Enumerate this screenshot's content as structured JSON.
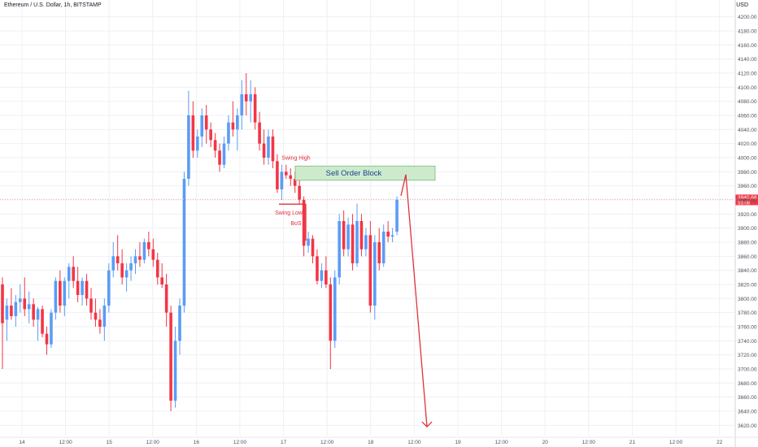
{
  "header": {
    "title": "Ethereum / U.S. Dollar, 1h, BITSTAMP",
    "currency": "USD"
  },
  "price_label": {
    "price": "3940.68",
    "countdown": "53:08"
  },
  "annotations": {
    "swing_high": "Swing High",
    "swing_low": "Swing Low",
    "bos": "BoS",
    "order_block": "Sell Order Block"
  },
  "colors": {
    "up": "#5b9cf6",
    "down": "#f23645",
    "order_block_fill": "#cdeacd",
    "order_block_border": "#8bc68b",
    "order_block_text": "#1b3f8b",
    "annotation": "#e0313b",
    "grid": "#eef0f4",
    "axis_text": "#4c4f5a"
  },
  "chart_data": {
    "type": "candlestick",
    "title": "",
    "xlabel": "",
    "ylabel": "",
    "ylim": [
      3610,
      4210
    ],
    "y_ticks": [
      3620,
      3640,
      3660,
      3680,
      3700,
      3720,
      3740,
      3760,
      3780,
      3800,
      3820,
      3840,
      3860,
      3880,
      3900,
      3920,
      3940,
      3960,
      3980,
      4000,
      4020,
      4040,
      4060,
      4080,
      4100,
      4120,
      4140,
      4160,
      4180,
      4200
    ],
    "x_tick_labels": [
      "14",
      "12:00",
      "15",
      "12:00",
      "16",
      "12:00",
      "17",
      "12:00",
      "18",
      "12:00",
      "19",
      "12:00",
      "20",
      "12:00",
      "21",
      "12:00",
      "22"
    ],
    "grid": true,
    "current_price": 3940.68,
    "candles": [
      {
        "o": 3820,
        "h": 3830,
        "l": 3700,
        "c": 3765
      },
      {
        "o": 3770,
        "h": 3800,
        "l": 3740,
        "c": 3790
      },
      {
        "o": 3790,
        "h": 3815,
        "l": 3770,
        "c": 3775
      },
      {
        "o": 3775,
        "h": 3805,
        "l": 3760,
        "c": 3795
      },
      {
        "o": 3795,
        "h": 3820,
        "l": 3780,
        "c": 3800
      },
      {
        "o": 3800,
        "h": 3830,
        "l": 3775,
        "c": 3785
      },
      {
        "o": 3785,
        "h": 3810,
        "l": 3765,
        "c": 3792
      },
      {
        "o": 3792,
        "h": 3800,
        "l": 3760,
        "c": 3770
      },
      {
        "o": 3770,
        "h": 3788,
        "l": 3740,
        "c": 3785
      },
      {
        "o": 3785,
        "h": 3790,
        "l": 3745,
        "c": 3750
      },
      {
        "o": 3750,
        "h": 3760,
        "l": 3720,
        "c": 3735
      },
      {
        "o": 3735,
        "h": 3785,
        "l": 3730,
        "c": 3780
      },
      {
        "o": 3780,
        "h": 3830,
        "l": 3770,
        "c": 3825
      },
      {
        "o": 3825,
        "h": 3840,
        "l": 3780,
        "c": 3790
      },
      {
        "o": 3790,
        "h": 3830,
        "l": 3775,
        "c": 3825
      },
      {
        "o": 3825,
        "h": 3850,
        "l": 3800,
        "c": 3845
      },
      {
        "o": 3845,
        "h": 3860,
        "l": 3815,
        "c": 3825
      },
      {
        "o": 3825,
        "h": 3845,
        "l": 3795,
        "c": 3805
      },
      {
        "o": 3805,
        "h": 3830,
        "l": 3790,
        "c": 3825
      },
      {
        "o": 3825,
        "h": 3835,
        "l": 3790,
        "c": 3800
      },
      {
        "o": 3800,
        "h": 3815,
        "l": 3770,
        "c": 3780
      },
      {
        "o": 3780,
        "h": 3800,
        "l": 3760,
        "c": 3770
      },
      {
        "o": 3770,
        "h": 3785,
        "l": 3750,
        "c": 3760
      },
      {
        "o": 3760,
        "h": 3800,
        "l": 3740,
        "c": 3790
      },
      {
        "o": 3790,
        "h": 3850,
        "l": 3780,
        "c": 3840
      },
      {
        "o": 3840,
        "h": 3880,
        "l": 3830,
        "c": 3860
      },
      {
        "o": 3860,
        "h": 3890,
        "l": 3840,
        "c": 3850
      },
      {
        "o": 3850,
        "h": 3870,
        "l": 3820,
        "c": 3830
      },
      {
        "o": 3830,
        "h": 3850,
        "l": 3810,
        "c": 3840
      },
      {
        "o": 3840,
        "h": 3860,
        "l": 3825,
        "c": 3850
      },
      {
        "o": 3850,
        "h": 3870,
        "l": 3835,
        "c": 3860
      },
      {
        "o": 3860,
        "h": 3880,
        "l": 3845,
        "c": 3855
      },
      {
        "o": 3855,
        "h": 3885,
        "l": 3850,
        "c": 3880
      },
      {
        "o": 3880,
        "h": 3895,
        "l": 3860,
        "c": 3870
      },
      {
        "o": 3870,
        "h": 3885,
        "l": 3845,
        "c": 3855
      },
      {
        "o": 3855,
        "h": 3865,
        "l": 3820,
        "c": 3830
      },
      {
        "o": 3830,
        "h": 3850,
        "l": 3815,
        "c": 3820
      },
      {
        "o": 3820,
        "h": 3835,
        "l": 3760,
        "c": 3780
      },
      {
        "o": 3780,
        "h": 3790,
        "l": 3640,
        "c": 3655
      },
      {
        "o": 3655,
        "h": 3760,
        "l": 3645,
        "c": 3740
      },
      {
        "o": 3740,
        "h": 3800,
        "l": 3720,
        "c": 3790
      },
      {
        "o": 3790,
        "h": 3980,
        "l": 3780,
        "c": 3970
      },
      {
        "o": 3970,
        "h": 4095,
        "l": 3960,
        "c": 4060
      },
      {
        "o": 4060,
        "h": 4080,
        "l": 4000,
        "c": 4010
      },
      {
        "o": 4010,
        "h": 4040,
        "l": 4000,
        "c": 4030
      },
      {
        "o": 4030,
        "h": 4070,
        "l": 4015,
        "c": 4060
      },
      {
        "o": 4060,
        "h": 4075,
        "l": 4020,
        "c": 4040
      },
      {
        "o": 4040,
        "h": 4050,
        "l": 4015,
        "c": 4025
      },
      {
        "o": 4025,
        "h": 4035,
        "l": 4000,
        "c": 4010
      },
      {
        "o": 4010,
        "h": 4020,
        "l": 3980,
        "c": 3990
      },
      {
        "o": 3990,
        "h": 4030,
        "l": 3985,
        "c": 4020
      },
      {
        "o": 4020,
        "h": 4060,
        "l": 4010,
        "c": 4050
      },
      {
        "o": 4050,
        "h": 4080,
        "l": 4030,
        "c": 4040
      },
      {
        "o": 4040,
        "h": 4070,
        "l": 4010,
        "c": 4060
      },
      {
        "o": 4060,
        "h": 4110,
        "l": 4040,
        "c": 4090
      },
      {
        "o": 4090,
        "h": 4120,
        "l": 4060,
        "c": 4080
      },
      {
        "o": 4080,
        "h": 4110,
        "l": 4050,
        "c": 4090
      },
      {
        "o": 4090,
        "h": 4100,
        "l": 4040,
        "c": 4050
      },
      {
        "o": 4050,
        "h": 4065,
        "l": 4010,
        "c": 4020
      },
      {
        "o": 4020,
        "h": 4040,
        "l": 3990,
        "c": 4000
      },
      {
        "o": 4000,
        "h": 4040,
        "l": 3990,
        "c": 4030
      },
      {
        "o": 4030,
        "h": 4040,
        "l": 3985,
        "c": 3995
      },
      {
        "o": 3995,
        "h": 4005,
        "l": 3950,
        "c": 3955
      },
      {
        "o": 3955,
        "h": 3990,
        "l": 3940,
        "c": 3980
      },
      {
        "o": 3980,
        "h": 3990,
        "l": 3970,
        "c": 3975
      },
      {
        "o": 3975,
        "h": 3985,
        "l": 3960,
        "c": 3970
      },
      {
        "o": 3970,
        "h": 3980,
        "l": 3950,
        "c": 3960
      },
      {
        "o": 3960,
        "h": 3975,
        "l": 3935,
        "c": 3940
      },
      {
        "o": 3940,
        "h": 3945,
        "l": 3860,
        "c": 3875
      },
      {
        "o": 3875,
        "h": 3895,
        "l": 3865,
        "c": 3885
      },
      {
        "o": 3885,
        "h": 3890,
        "l": 3850,
        "c": 3860
      },
      {
        "o": 3860,
        "h": 3870,
        "l": 3820,
        "c": 3825
      },
      {
        "o": 3825,
        "h": 3850,
        "l": 3815,
        "c": 3840
      },
      {
        "o": 3840,
        "h": 3860,
        "l": 3815,
        "c": 3820
      },
      {
        "o": 3820,
        "h": 3830,
        "l": 3700,
        "c": 3740
      },
      {
        "o": 3740,
        "h": 3840,
        "l": 3730,
        "c": 3830
      },
      {
        "o": 3830,
        "h": 3920,
        "l": 3820,
        "c": 3910
      },
      {
        "o": 3910,
        "h": 3925,
        "l": 3860,
        "c": 3870
      },
      {
        "o": 3870,
        "h": 3915,
        "l": 3860,
        "c": 3905
      },
      {
        "o": 3905,
        "h": 3920,
        "l": 3840,
        "c": 3850
      },
      {
        "o": 3850,
        "h": 3935,
        "l": 3845,
        "c": 3910
      },
      {
        "o": 3910,
        "h": 3920,
        "l": 3860,
        "c": 3870
      },
      {
        "o": 3870,
        "h": 3900,
        "l": 3860,
        "c": 3890
      },
      {
        "o": 3890,
        "h": 3910,
        "l": 3780,
        "c": 3790
      },
      {
        "o": 3790,
        "h": 3890,
        "l": 3770,
        "c": 3880
      },
      {
        "o": 3880,
        "h": 3900,
        "l": 3840,
        "c": 3850
      },
      {
        "o": 3850,
        "h": 3905,
        "l": 3845,
        "c": 3895
      },
      {
        "o": 3895,
        "h": 3910,
        "l": 3880,
        "c": 3888
      },
      {
        "o": 3888,
        "h": 3900,
        "l": 3880,
        "c": 3890
      },
      {
        "o": 3895,
        "h": 3945,
        "l": 3890,
        "c": 3940
      }
    ]
  }
}
